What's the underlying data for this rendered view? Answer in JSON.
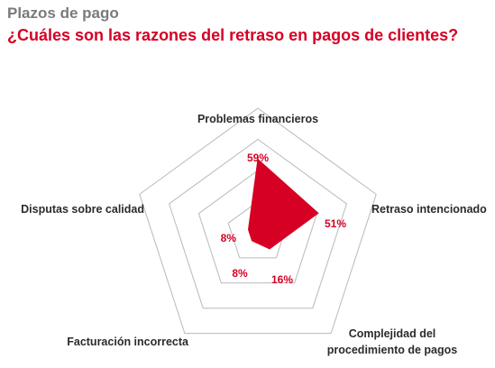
{
  "header": {
    "kicker": "Plazos de pago",
    "title": "¿Cuáles son las razones del retraso en pagos de clientes?"
  },
  "colors": {
    "accent": "#d60024",
    "grid": "#b9b9b9",
    "kicker": "#7a7a7a",
    "axis_text": "#2b2b2b"
  },
  "chart_data": {
    "type": "radar",
    "categories": [
      [
        "Problemas financieros"
      ],
      [
        "Retraso intencionado"
      ],
      [
        "Complejidad del",
        "procedimiento de pagos"
      ],
      [
        "Facturación incorrecta"
      ],
      [
        "Disputas sobre calidad"
      ]
    ],
    "values": [
      59,
      51,
      16,
      8,
      8
    ],
    "value_labels": [
      "59%",
      "51%",
      "16%",
      "8%",
      "8%"
    ],
    "rmax": 100,
    "rings": 4,
    "grid": true
  }
}
